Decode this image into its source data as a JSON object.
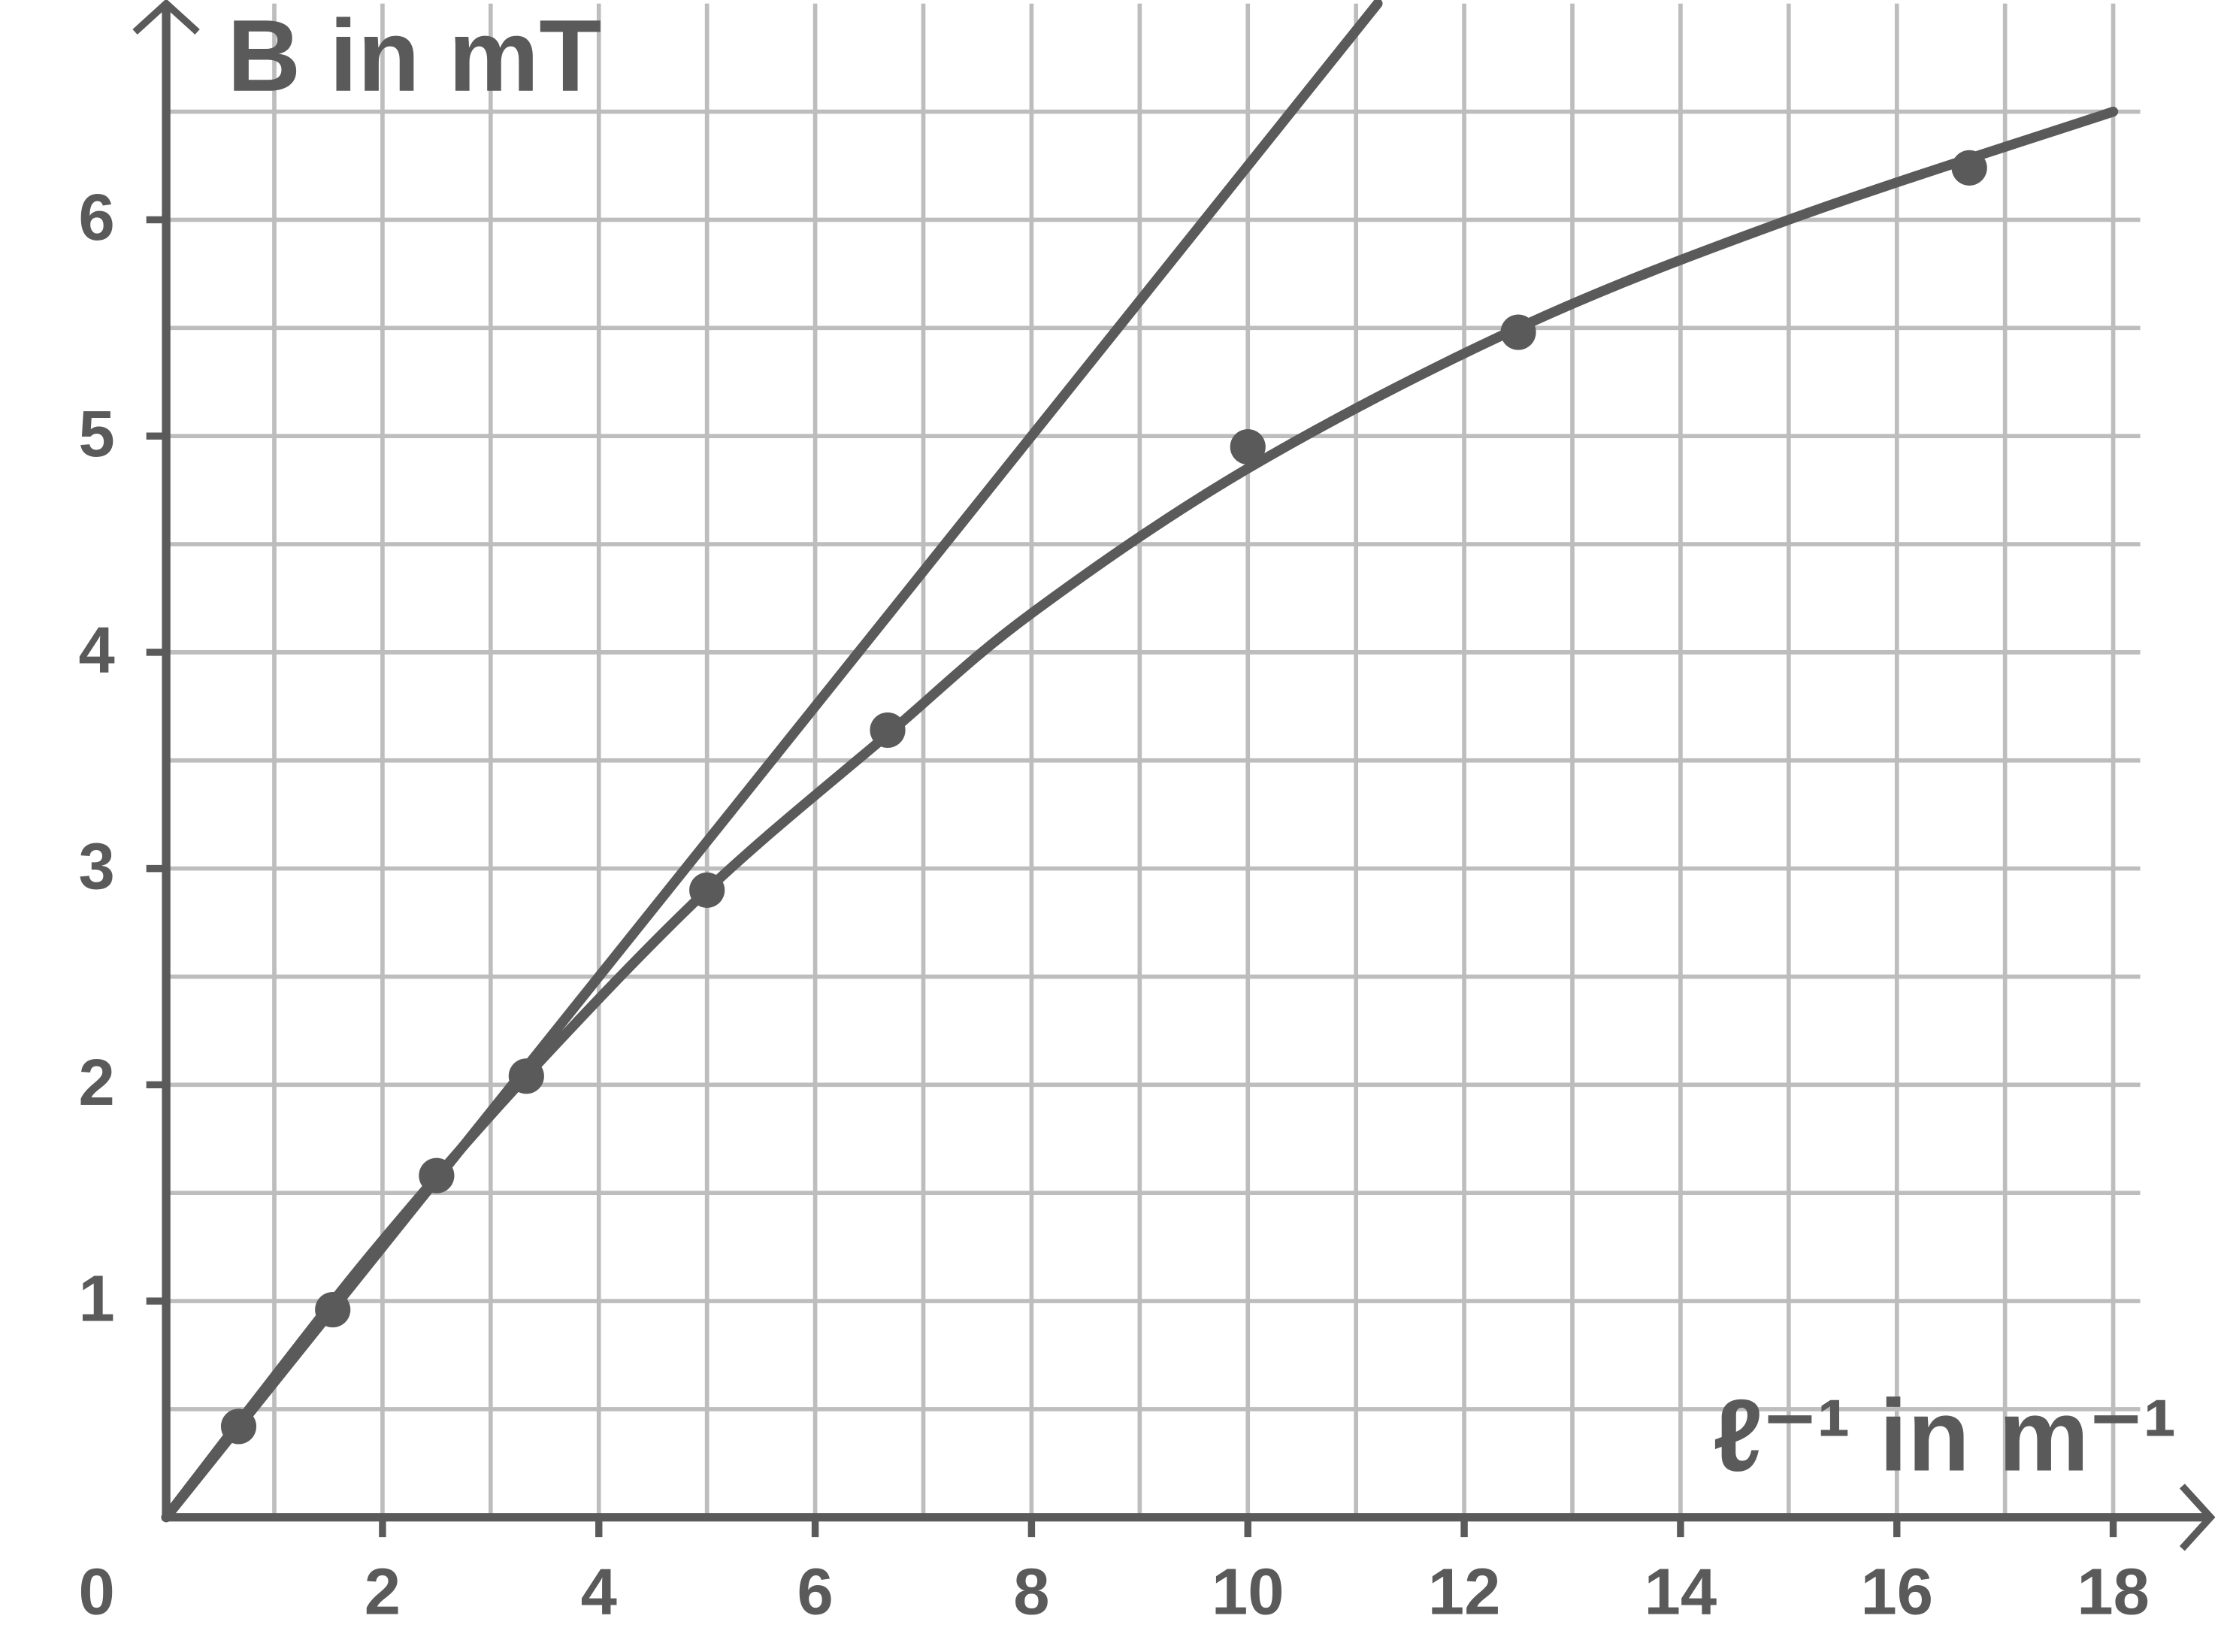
{
  "chart_data": {
    "type": "scatter",
    "y_label": "B in mT",
    "x_label": "ℓ⁻¹ in m⁻¹",
    "xlim": [
      0,
      18.9
    ],
    "ylim": [
      0,
      7
    ],
    "xticks": [
      0,
      2,
      4,
      6,
      8,
      10,
      12,
      14,
      16,
      18
    ],
    "yticks": [
      1,
      2,
      3,
      4,
      5,
      6
    ],
    "grid": true,
    "grid_step_x": 1,
    "grid_step_y": 0.5,
    "color": "#5a5a5a",
    "points": {
      "x": [
        0.67,
        1.54,
        2.5,
        3.33,
        5,
        6.67,
        10,
        12.5,
        16.67
      ],
      "values": [
        0.42,
        0.96,
        1.58,
        2.04,
        2.9,
        3.64,
        4.95,
        5.48,
        6.24
      ]
    },
    "curves": [
      {
        "x": [
          0,
          11.2
        ],
        "values": [
          0,
          7.0
        ]
      },
      {
        "x": [
          0,
          1,
          2,
          3.33,
          5,
          6.67,
          8,
          10,
          12.5,
          15,
          18
        ],
        "values": [
          0,
          0.65,
          1.28,
          2.04,
          2.9,
          3.62,
          4.18,
          4.85,
          5.5,
          6.0,
          6.5
        ]
      }
    ]
  }
}
